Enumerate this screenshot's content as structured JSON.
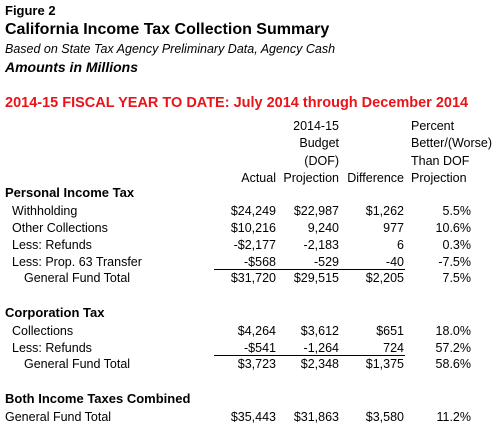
{
  "figure_label": "Figure 2",
  "title": "California Income Tax Collection Summary",
  "subtitle": "Based on State Tax Agency Preliminary Data, Agency Cash",
  "units": "Amounts in Millions",
  "period_heading": "2014-15 FISCAL YEAR TO DATE: July 2014 through December 2014",
  "columns": [
    [
      "Actual"
    ],
    [
      "2014-15",
      "Budget",
      "(DOF)",
      "Projection"
    ],
    [
      "Difference"
    ],
    [
      "Percent",
      "Better/(Worse)",
      "Than DOF",
      "Projection"
    ]
  ],
  "sections": [
    {
      "heading": "Personal Income Tax",
      "rows": [
        {
          "label": "Withholding",
          "cells": [
            "$24,249",
            "$22,987",
            "$1,262",
            "5.5%"
          ]
        },
        {
          "label": "Other Collections",
          "cells": [
            "$10,216",
            "9,240",
            "977",
            "10.6%"
          ]
        },
        {
          "label": "Less: Refunds",
          "cells": [
            "-$2,177",
            "-2,183",
            "6",
            "0.3%"
          ]
        },
        {
          "label": "Less: Prop. 63 Transfer",
          "cells": [
            "-$568",
            "-529",
            "-40",
            "-7.5%"
          ]
        }
      ],
      "total": {
        "label": "General Fund Total",
        "cells": [
          "$31,720",
          "$29,515",
          "$2,205",
          "7.5%"
        ]
      }
    },
    {
      "heading": "Corporation Tax",
      "rows": [
        {
          "label": "Collections",
          "cells": [
            "$4,264",
            "$3,612",
            "$651",
            "18.0%"
          ]
        },
        {
          "label": "Less: Refunds",
          "cells": [
            "-$541",
            "-1,264",
            "724",
            "57.2%"
          ]
        }
      ],
      "total": {
        "label": "General Fund Total",
        "cells": [
          "$3,723",
          "$2,348",
          "$1,375",
          "58.6%"
        ]
      }
    },
    {
      "heading": "Both Income Taxes Combined",
      "rows": [
        {
          "label": "General Fund Total",
          "cells": [
            "$35,443",
            "$31,863",
            "$3,580",
            "11.2%"
          ]
        }
      ]
    }
  ]
}
